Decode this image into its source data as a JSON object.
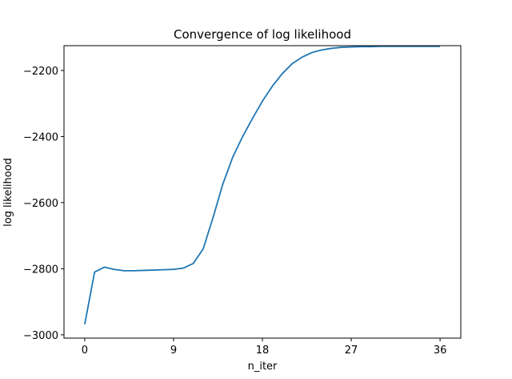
{
  "chart_data": {
    "type": "line",
    "title": "Convergence of log likelihood",
    "xlabel": "n_iter",
    "ylabel": "log likelihood",
    "xlim": [
      -2.1,
      38.1
    ],
    "ylim": [
      -3010,
      -2125
    ],
    "xticks": [
      0,
      9,
      18,
      27,
      36
    ],
    "yticks": [
      -3000,
      -2800,
      -2600,
      -2400,
      -2200
    ],
    "ytick_labels": [
      "−3000",
      "−2800",
      "−2600",
      "−2400",
      "−2200"
    ],
    "grid": false,
    "series": [
      {
        "color": "#1f77b4",
        "x": [
          0,
          1,
          2,
          3,
          4,
          5,
          6,
          7,
          8,
          9,
          10,
          11,
          12,
          13,
          14,
          15,
          16,
          17,
          18,
          19,
          20,
          21,
          22,
          23,
          24,
          25,
          26,
          27,
          28,
          29,
          30,
          31,
          32,
          33,
          34,
          35,
          36
        ],
        "y": [
          -2968,
          -2810,
          -2795,
          -2802,
          -2806,
          -2806,
          -2805,
          -2804,
          -2803,
          -2802,
          -2798,
          -2784,
          -2740,
          -2645,
          -2543,
          -2462,
          -2400,
          -2345,
          -2293,
          -2248,
          -2210,
          -2180,
          -2160,
          -2146,
          -2138,
          -2133,
          -2130,
          -2129,
          -2128,
          -2128,
          -2127,
          -2127,
          -2127,
          -2127,
          -2127,
          -2127,
          -2127
        ]
      }
    ]
  }
}
